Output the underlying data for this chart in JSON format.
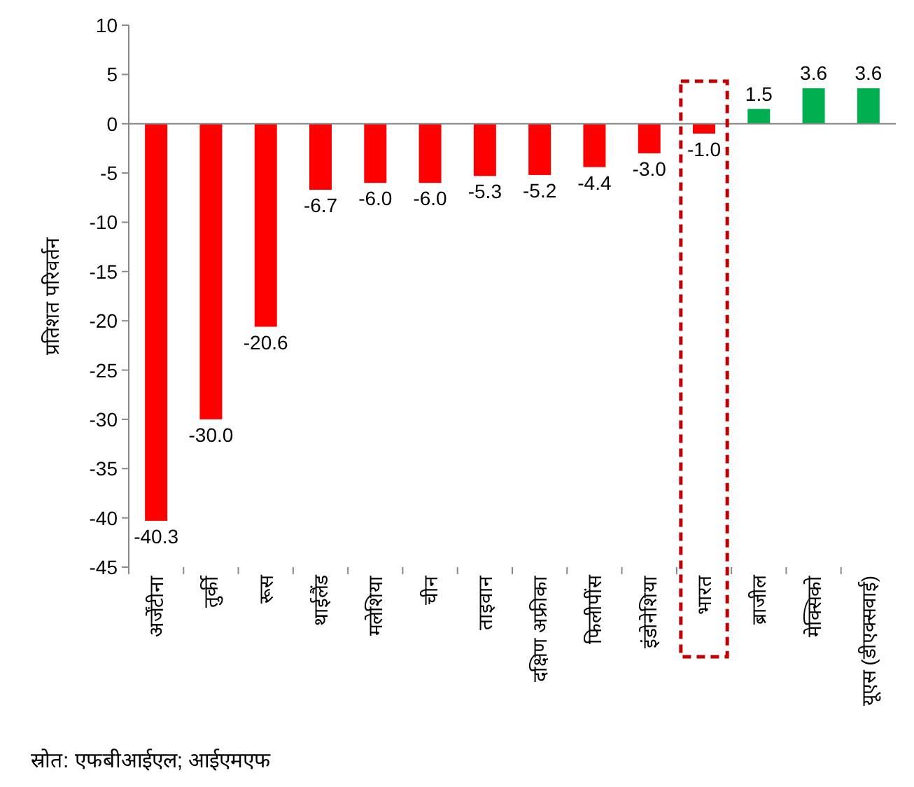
{
  "chart_data": {
    "type": "bar",
    "ylabel": "प्रतिशत परिवर्तन",
    "categories": [
      "अर्जेंटीना",
      "तुर्की",
      "रूस",
      "थाईलैंड",
      "मलेशिया",
      "चीन",
      "ताइवान",
      "दक्षिण अफ्रीका",
      "फिलीपींस",
      "इंडोनेशिया",
      "भारत",
      "ब्राजील",
      "मेक्सिको",
      "यूएस (डीएक्सवाई)"
    ],
    "values": [
      -40.3,
      -30.0,
      -20.6,
      -6.7,
      -6.0,
      -6.0,
      -5.3,
      -5.2,
      -4.4,
      -3.0,
      -1.0,
      1.5,
      3.6,
      3.6
    ],
    "colors": [
      "#ff0000",
      "#ff0000",
      "#ff0000",
      "#ff0000",
      "#ff0000",
      "#ff0000",
      "#ff0000",
      "#ff0000",
      "#ff0000",
      "#ff0000",
      "#ff0000",
      "#00b050",
      "#00b050",
      "#00b050"
    ],
    "value_labels": [
      "-40.3",
      "-30.0",
      "-20.6",
      "-6.7",
      "-6.0",
      "-6.0",
      "-5.3",
      "-5.2",
      "-4.4",
      "-3.0",
      "-1.0",
      "1.5",
      "3.6",
      "3.6"
    ],
    "ylim": [
      -45,
      10
    ],
    "yticks": [
      -45,
      -40,
      -35,
      -30,
      -25,
      -20,
      -15,
      -10,
      -5,
      0,
      5,
      10
    ],
    "annotations": [
      "स्रोत: एफबीआईएल; आईएमएफ"
    ]
  }
}
